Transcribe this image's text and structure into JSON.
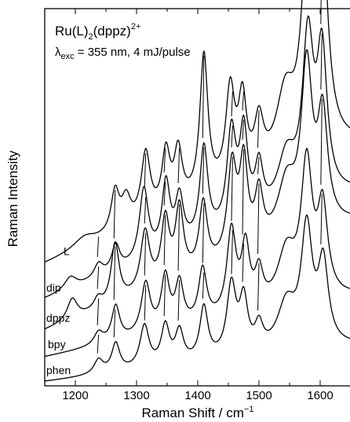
{
  "chart_data": {
    "type": "line",
    "title": {
      "main": "Ru(L)",
      "sub1": "2",
      "mid": "(dppz)",
      "sup": "2+"
    },
    "subtitle": {
      "lambda": "λ",
      "sub": "exc",
      "rest": " = 355 nm, 4 mJ/pulse"
    },
    "xlabel": {
      "main": "Raman Shift / cm",
      "sup": "−1"
    },
    "ylabel": "Raman Intensity",
    "xlim": [
      1150,
      1650
    ],
    "xticks": [
      1200,
      1300,
      1400,
      1500,
      1600
    ],
    "grid": false,
    "legend": "none",
    "series": [
      {
        "name": "L",
        "baseline": 0.0,
        "scale": 1.0,
        "start": 0.335,
        "end": 0.67,
        "peaks": [
          [
            1215,
            0.03,
            22
          ],
          [
            1265,
            0.115,
            8
          ],
          [
            1283,
            0.08,
            9
          ],
          [
            1315,
            0.19,
            9
          ],
          [
            1348,
            0.165,
            8
          ],
          [
            1368,
            0.155,
            8
          ],
          [
            1410,
            0.4,
            8
          ],
          [
            1453,
            0.265,
            9
          ],
          [
            1473,
            0.215,
            8
          ],
          [
            1500,
            0.14,
            9
          ],
          [
            1543,
            0.19,
            18
          ],
          [
            1580,
            0.58,
            12
          ],
          [
            1603,
            0.57,
            11
          ]
        ]
      },
      {
        "name": "dip",
        "baseline": 0.0,
        "scale": 1.0,
        "start": 0.235,
        "end": 0.535,
        "peaks": [
          [
            1192,
            0.035,
            12
          ],
          [
            1238,
            0.04,
            9
          ],
          [
            1266,
            0.075,
            8
          ],
          [
            1312,
            0.205,
            9
          ],
          [
            1348,
            0.195,
            8
          ],
          [
            1370,
            0.14,
            8
          ],
          [
            1410,
            0.26,
            8
          ],
          [
            1455,
            0.27,
            9
          ],
          [
            1475,
            0.25,
            8
          ],
          [
            1500,
            0.14,
            8
          ],
          [
            1545,
            0.15,
            18
          ],
          [
            1580,
            0.45,
            11
          ],
          [
            1603,
            0.4,
            10
          ]
        ]
      },
      {
        "name": "dppz",
        "baseline": 0.0,
        "scale": 1.0,
        "start": 0.145,
        "end": 0.45,
        "peaks": [
          [
            1195,
            0.06,
            10
          ],
          [
            1237,
            0.03,
            8
          ],
          [
            1265,
            0.17,
            8
          ],
          [
            1314,
            0.17,
            9
          ],
          [
            1347,
            0.18,
            8
          ],
          [
            1370,
            0.2,
            8
          ],
          [
            1409,
            0.19,
            8
          ],
          [
            1456,
            0.26,
            9
          ],
          [
            1475,
            0.25,
            8
          ],
          [
            1500,
            0.15,
            8
          ],
          [
            1545,
            0.16,
            18
          ],
          [
            1578,
            0.46,
            11
          ],
          [
            1604,
            0.31,
            10
          ]
        ]
      },
      {
        "name": "bpy",
        "baseline": 0.0,
        "scale": 1.0,
        "start": 0.07,
        "end": 0.24,
        "peaks": [
          [
            1238,
            0.035,
            9
          ],
          [
            1266,
            0.1,
            8
          ],
          [
            1315,
            0.145,
            9
          ],
          [
            1347,
            0.15,
            8
          ],
          [
            1370,
            0.125,
            8
          ],
          [
            1408,
            0.15,
            8
          ],
          [
            1455,
            0.24,
            9
          ],
          [
            1478,
            0.18,
            8
          ],
          [
            1500,
            0.1,
            8
          ],
          [
            1545,
            0.15,
            18
          ],
          [
            1578,
            0.38,
            11
          ],
          [
            1604,
            0.25,
            10
          ]
        ]
      },
      {
        "name": "phen",
        "baseline": 0.0,
        "scale": 1.0,
        "start": 0.0,
        "end": 0.1,
        "peaks": [
          [
            1238,
            0.04,
            9
          ],
          [
            1266,
            0.08,
            8
          ],
          [
            1313,
            0.12,
            9
          ],
          [
            1347,
            0.11,
            8
          ],
          [
            1370,
            0.09,
            8
          ],
          [
            1410,
            0.15,
            8
          ],
          [
            1455,
            0.2,
            9
          ],
          [
            1475,
            0.15,
            8
          ],
          [
            1500,
            0.07,
            8
          ],
          [
            1545,
            0.13,
            18
          ],
          [
            1578,
            0.33,
            11
          ],
          [
            1605,
            0.23,
            10
          ]
        ]
      }
    ],
    "marker_lines": [
      1238,
      1265,
      1315,
      1347,
      1370,
      1410,
      1457,
      1475,
      1500,
      1603
    ]
  }
}
